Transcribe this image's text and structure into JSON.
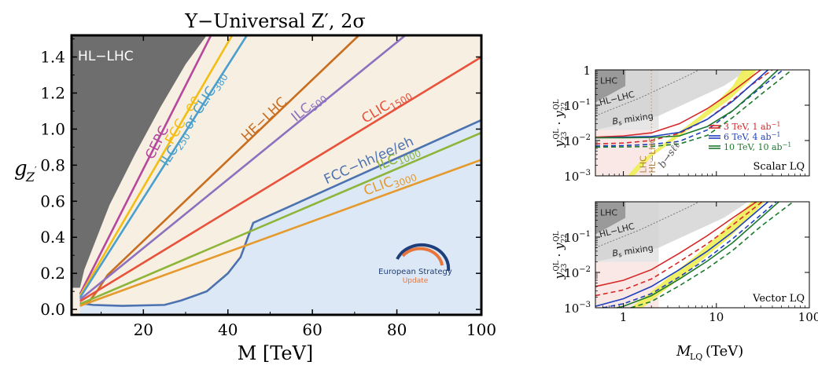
{
  "chart_data": [
    {
      "type": "line",
      "title": "Y−Universal Z′, 2σ",
      "xlabel": "M [TeV]",
      "ylabel": "g_Z′",
      "xlim": [
        3,
        100
      ],
      "ylim": [
        -0.03,
        1.52
      ],
      "x_ticks": [
        20,
        40,
        60,
        80,
        100
      ],
      "y_ticks": [
        0.0,
        0.2,
        0.4,
        0.6,
        0.8,
        1.0,
        1.2,
        1.4
      ],
      "x_tick_labels": [
        "20",
        "40",
        "60",
        "80",
        "100"
      ],
      "y_tick_labels": [
        "0.0",
        "0.2",
        "0.4",
        "0.6",
        "0.8",
        "1.0",
        "1.2",
        "1.4"
      ],
      "grid": false,
      "hl_lhc_region": {
        "label": "HL−LHC",
        "color": "#6e6e6e",
        "boundary": [
          [
            5,
            0.12
          ],
          [
            6,
            0.22
          ],
          [
            8,
            0.34
          ],
          [
            12,
            0.58
          ],
          [
            18,
            0.86
          ],
          [
            24,
            1.12
          ],
          [
            30,
            1.36
          ],
          [
            35,
            1.52
          ]
        ]
      },
      "series": [
        {
          "name": "CEPC",
          "label": "CEPC",
          "sub": "",
          "color": "#b5489c",
          "x": [
            5,
            36
          ],
          "y": [
            0.085,
            1.52
          ]
        },
        {
          "name": "FCC−ee",
          "label": "FCC−ee",
          "sub": "",
          "color": "#f3bd14",
          "x": [
            5,
            41
          ],
          "y": [
            0.075,
            1.52
          ]
        },
        {
          "name": "ILC250 or CLIC380",
          "label": "ILC",
          "sub": "250",
          "label2": " or CLIC",
          "sub2": "380",
          "color": "#4a9fcc",
          "x": [
            5,
            44.5
          ],
          "y": [
            0.065,
            1.52
          ]
        },
        {
          "name": "HE−LHC",
          "label": "HE−LHC",
          "sub": "",
          "color": "#c96d1f",
          "x": [
            11.5,
            71
          ],
          "y": [
            0.19,
            1.52
          ],
          "hook": [
            [
              5,
              0.02
            ],
            [
              7,
              0.04
            ],
            [
              9,
              0.1
            ],
            [
              11.5,
              0.19
            ]
          ]
        },
        {
          "name": "ILC500",
          "label": "ILC",
          "sub": "500",
          "color": "#8d71bf",
          "x": [
            5,
            82
          ],
          "y": [
            0.055,
            1.52
          ]
        },
        {
          "name": "CLIC1500",
          "label": "CLIC",
          "sub": "1500",
          "color": "#e8513a",
          "x": [
            5,
            100
          ],
          "y": [
            0.045,
            1.4
          ]
        },
        {
          "name": "FCC−hh/ee/eh",
          "label": "FCC−hh/ee/eh",
          "sub": "",
          "color": "#4c72b0",
          "x": [
            5,
            8,
            15,
            25,
            29,
            35,
            40,
            43,
            46,
            100
          ],
          "y": [
            0.035,
            0.025,
            0.02,
            0.025,
            0.05,
            0.1,
            0.2,
            0.29,
            0.48,
            1.05
          ],
          "fill_color": "#dce8f5"
        },
        {
          "name": "ILC1000",
          "label": "ILC",
          "sub": "1000",
          "color": "#8db53a",
          "x": [
            5,
            100
          ],
          "y": [
            0.03,
            0.98
          ]
        },
        {
          "name": "CLIC3000",
          "label": "CLIC",
          "sub": "3000",
          "color": "#e59a2e",
          "x": [
            5,
            100
          ],
          "y": [
            0.02,
            0.83
          ]
        }
      ],
      "logo": {
        "line1": "European Strategy",
        "line2": "Update"
      }
    },
    {
      "type": "line",
      "ylabel": "y23QL · y22QL",
      "x_scale": "log",
      "y_scale": "log",
      "xlim": [
        0.5,
        100
      ],
      "ylim": [
        0.001,
        1
      ],
      "x_ticks": [
        1,
        10,
        100
      ],
      "y_ticks": [
        0.001,
        0.01,
        0.1,
        1
      ],
      "x_tick_labels": [
        "1",
        "10",
        "100"
      ],
      "y_tick_labels": [
        "10−3",
        "10−2",
        "10−1",
        "1"
      ],
      "region_labels": [
        "LHC",
        "HL−LHC",
        "Bs mixing",
        "LHC",
        "HL−LHC",
        "b→sℓℓ"
      ],
      "panel_label": "Scalar LQ",
      "legend": {
        "position": "right",
        "entries": [
          {
            "text": "3 TeV, 1 ab−1",
            "color": "#d62728"
          },
          {
            "text": "6 TeV, 4 ab−1",
            "color": "#1f3fbf"
          },
          {
            "text": "10 TeV, 10 ab−1",
            "color": "#1c7a2c"
          }
        ]
      },
      "series": [
        {
          "name": "3 TeV, 1 ab−1 (solid)",
          "color": "#d62728",
          "dash": false,
          "x": [
            0.5,
            1,
            2,
            4,
            8,
            15,
            30
          ],
          "y": [
            0.0125,
            0.0135,
            0.0165,
            0.03,
            0.08,
            0.25,
            1
          ]
        },
        {
          "name": "3 TeV, 1 ab−1 (dashed)",
          "color": "#d62728",
          "dash": true,
          "x": [
            0.5,
            1,
            2,
            4,
            8,
            15,
            23,
            40
          ],
          "y": [
            0.008,
            0.0085,
            0.01,
            0.016,
            0.04,
            0.14,
            0.35,
            1
          ]
        },
        {
          "name": "6 TeV, 4 ab−1 (solid)",
          "color": "#1f3fbf",
          "dash": false,
          "x": [
            0.5,
            1,
            2,
            4,
            8,
            15,
            36
          ],
          "y": [
            0.012,
            0.0125,
            0.013,
            0.017,
            0.04,
            0.13,
            1
          ]
        },
        {
          "name": "6 TeV, 4 ab−1 (dashed)",
          "color": "#1f3fbf",
          "dash": true,
          "x": [
            0.5,
            1,
            2,
            4,
            8,
            15,
            27,
            52
          ],
          "y": [
            0.007,
            0.0072,
            0.0078,
            0.0095,
            0.02,
            0.07,
            0.25,
            1
          ]
        },
        {
          "name": "10 TeV, 10 ab−1 (solid)",
          "color": "#1c7a2c",
          "dash": false,
          "x": [
            0.5,
            1,
            2,
            4,
            8,
            15,
            30,
            46
          ],
          "y": [
            0.012,
            0.012,
            0.0122,
            0.0135,
            0.025,
            0.07,
            0.35,
            1
          ]
        },
        {
          "name": "10 TeV, 10 ab−1 (dashed)",
          "color": "#1c7a2c",
          "dash": true,
          "x": [
            0.5,
            1,
            2,
            4,
            8,
            15,
            30,
            65
          ],
          "y": [
            0.0065,
            0.0066,
            0.0068,
            0.008,
            0.014,
            0.045,
            0.2,
            1
          ]
        }
      ],
      "band": {
        "color": "#eeee55",
        "lower": [
          [
            1.3,
            0.001
          ],
          [
            2,
            0.0035
          ],
          [
            4,
            0.013
          ],
          [
            8,
            0.05
          ],
          [
            14,
            0.15
          ],
          [
            23,
            0.5
          ],
          [
            27,
            1
          ]
        ],
        "upper": [
          [
            1.1,
            0.001
          ],
          [
            1.5,
            0.0025
          ],
          [
            3,
            0.01
          ],
          [
            6,
            0.04
          ],
          [
            10,
            0.12
          ],
          [
            15,
            0.35
          ],
          [
            19,
            1
          ]
        ]
      }
    },
    {
      "type": "line",
      "xlabel": "MLQ (TeV)",
      "ylabel": "y23QL · y22QL",
      "x_scale": "log",
      "y_scale": "log",
      "xlim": [
        0.5,
        100
      ],
      "ylim": [
        0.001,
        1
      ],
      "x_ticks": [
        1,
        10,
        100
      ],
      "y_ticks": [
        0.001,
        0.01,
        0.1
      ],
      "x_tick_labels": [
        "1",
        "10",
        "100"
      ],
      "y_tick_labels": [
        "10−3",
        "10−2",
        "10−1"
      ],
      "region_labels": [
        "LHC",
        "HL−LHC",
        "Bs mixing"
      ],
      "panel_label": "Vector LQ",
      "series": [
        {
          "name": "3 TeV, 1 ab−1 (solid)",
          "color": "#d62728",
          "dash": false,
          "x": [
            0.5,
            1,
            2,
            4,
            8,
            15,
            27
          ],
          "y": [
            0.004,
            0.006,
            0.012,
            0.035,
            0.11,
            0.35,
            1
          ]
        },
        {
          "name": "3 TeV, 1 ab−1 (dashed)",
          "color": "#d62728",
          "dash": true,
          "x": [
            0.5,
            1,
            2,
            4,
            8,
            15,
            31
          ],
          "y": [
            0.0022,
            0.0032,
            0.0065,
            0.02,
            0.065,
            0.22,
            1
          ]
        },
        {
          "name": "6 TeV, 4 ab−1 (solid)",
          "color": "#1f3fbf",
          "dash": false,
          "x": [
            0.5,
            1,
            2,
            4,
            8,
            15,
            36
          ],
          "y": [
            0.0011,
            0.0018,
            0.004,
            0.012,
            0.04,
            0.14,
            1
          ]
        },
        {
          "name": "6 TeV, 4 ab−1 (dashed)",
          "color": "#1f3fbf",
          "dash": true,
          "x": [
            0.6,
            1,
            2,
            4,
            8,
            15,
            44
          ],
          "y": [
            0.001,
            0.0013,
            0.0025,
            0.0075,
            0.025,
            0.09,
            1
          ]
        },
        {
          "name": "10 TeV, 10 ab−1 (solid)",
          "color": "#1c7a2c",
          "dash": false,
          "x": [
            0.85,
            1,
            2,
            4,
            8,
            15,
            47
          ],
          "y": [
            0.001,
            0.0011,
            0.0022,
            0.0065,
            0.021,
            0.07,
            1
          ]
        },
        {
          "name": "10 TeV, 10 ab−1 (dashed)",
          "color": "#1c7a2c",
          "dash": true,
          "x": [
            1.2,
            2,
            4,
            8,
            15,
            30,
            67
          ],
          "y": [
            0.001,
            0.0015,
            0.0042,
            0.013,
            0.042,
            0.2,
            1
          ]
        }
      ],
      "band": {
        "color": "#eeee55",
        "lower": [
          [
            1.6,
            0.001
          ],
          [
            2,
            0.0016
          ],
          [
            4,
            0.0065
          ],
          [
            8,
            0.03
          ],
          [
            14,
            0.1
          ],
          [
            24,
            0.4
          ],
          [
            33,
            1
          ]
        ],
        "upper": [
          [
            1.2,
            0.001
          ],
          [
            1.6,
            0.0018
          ],
          [
            3,
            0.007
          ],
          [
            6,
            0.03
          ],
          [
            10,
            0.1
          ],
          [
            16,
            0.35
          ],
          [
            24,
            1
          ]
        ]
      }
    }
  ]
}
